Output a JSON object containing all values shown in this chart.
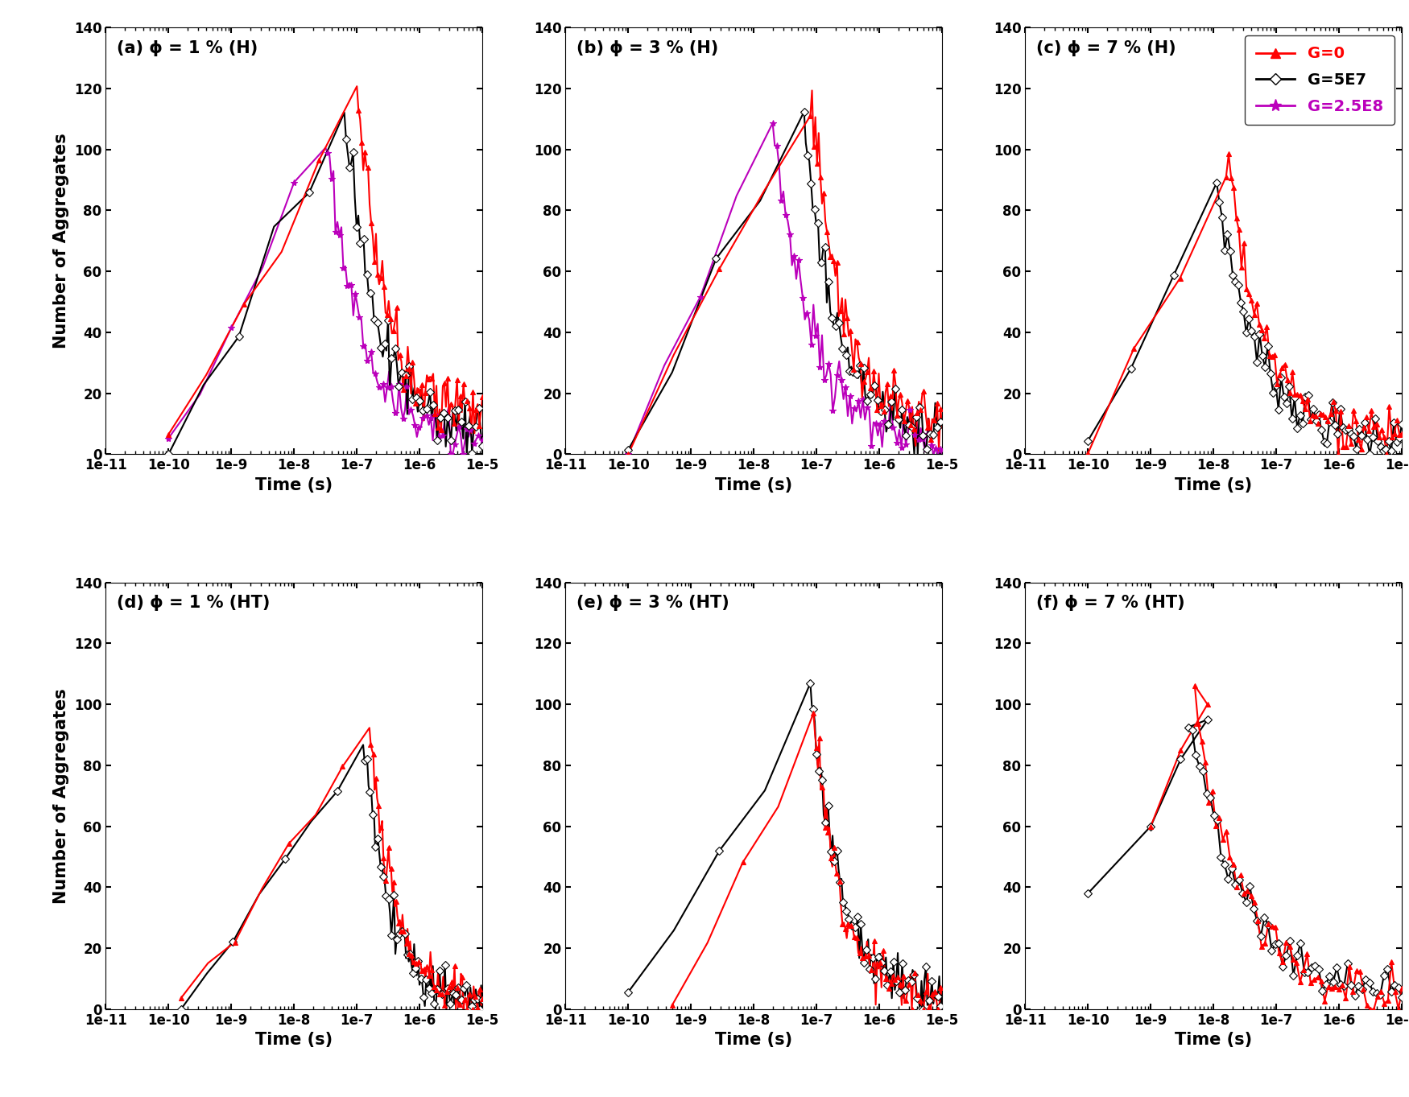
{
  "titles": [
    "(a) ϕ = 1 % (H)",
    "(b) ϕ = 3 % (H)",
    "(c) ϕ = 7 % (H)",
    "(d) ϕ = 1 % (HT)",
    "(e) ϕ = 3 % (HT)",
    "(f) ϕ = 7 % (HT)"
  ],
  "ylabel": "Number of Aggregates",
  "xlabel": "Time (s)",
  "ylim": [
    0,
    140
  ],
  "yticks": [
    0,
    20,
    40,
    60,
    80,
    100,
    120,
    140
  ],
  "color_G0": "#ff0000",
  "color_G5E7": "#000000",
  "color_G25E8": "#bb00bb",
  "figsize": [
    17.5,
    13.63
  ],
  "dpi": 100
}
